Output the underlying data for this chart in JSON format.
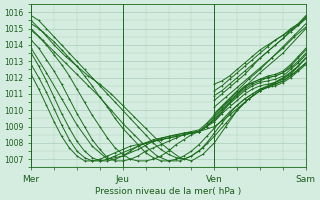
{
  "xlabel": "Pression niveau de la mer( hPa )",
  "xlim": [
    0,
    72
  ],
  "ylim": [
    1006.5,
    1016.5
  ],
  "yticks": [
    1007,
    1008,
    1009,
    1010,
    1011,
    1012,
    1013,
    1014,
    1015,
    1016
  ],
  "xtick_positions": [
    0,
    24,
    48,
    72
  ],
  "xtick_labels": [
    "Mer",
    "Jeu",
    "Ven",
    "Sam"
  ],
  "bg_color": "#d5ede0",
  "grid_color": "#aaccbb",
  "line_color": "#1a6b1a",
  "series": [
    {
      "x": [
        0,
        2,
        4,
        6,
        8,
        10,
        12,
        14,
        16,
        18,
        20,
        22,
        24,
        26,
        28,
        30,
        32,
        34,
        36,
        38,
        40,
        42,
        44,
        46,
        48,
        50,
        52,
        54,
        56,
        58,
        60,
        62,
        64,
        66,
        68,
        70,
        72
      ],
      "y": [
        1015.8,
        1015.5,
        1015.0,
        1014.5,
        1014.0,
        1013.5,
        1013.0,
        1012.5,
        1012.0,
        1011.5,
        1011.0,
        1010.5,
        1010.0,
        1009.5,
        1009.0,
        1008.5,
        1008.0,
        1007.6,
        1007.3,
        1007.1,
        1007.0,
        1007.2,
        1007.5,
        1008.0,
        1008.6,
        1009.2,
        1009.8,
        1010.3,
        1010.7,
        1011.0,
        1011.3,
        1011.4,
        1011.5,
        1011.7,
        1012.0,
        1012.4,
        1012.8
      ]
    },
    {
      "x": [
        0,
        2,
        4,
        6,
        8,
        10,
        12,
        14,
        16,
        18,
        20,
        22,
        24,
        26,
        28,
        30,
        32,
        34,
        36,
        38,
        40,
        42,
        44,
        46,
        48,
        50,
        52,
        54,
        56,
        58,
        60,
        62,
        64,
        66,
        68,
        70,
        72
      ],
      "y": [
        1015.3,
        1015.0,
        1014.6,
        1014.2,
        1013.7,
        1013.2,
        1012.7,
        1012.1,
        1011.5,
        1010.8,
        1010.2,
        1009.5,
        1008.9,
        1008.4,
        1007.9,
        1007.4,
        1007.1,
        1006.9,
        1006.9,
        1007.0,
        1007.2,
        1007.5,
        1007.9,
        1008.4,
        1008.9,
        1009.4,
        1009.9,
        1010.3,
        1010.7,
        1011.0,
        1011.3,
        1011.5,
        1011.6,
        1011.8,
        1012.1,
        1012.5,
        1012.9
      ]
    },
    {
      "x": [
        0,
        2,
        4,
        6,
        8,
        10,
        12,
        14,
        16,
        18,
        20,
        22,
        24,
        26,
        28,
        30,
        32,
        34,
        36,
        38,
        40,
        42,
        44,
        46,
        48,
        50,
        52,
        54,
        56,
        58,
        60,
        62,
        64,
        66,
        68,
        70,
        72
      ],
      "y": [
        1014.9,
        1014.5,
        1014.0,
        1013.4,
        1012.8,
        1012.1,
        1011.3,
        1010.5,
        1009.7,
        1009.0,
        1008.3,
        1007.7,
        1007.3,
        1007.0,
        1006.9,
        1006.9,
        1007.0,
        1007.2,
        1007.5,
        1007.9,
        1008.2,
        1008.5,
        1008.7,
        1009.0,
        1009.3,
        1009.8,
        1010.2,
        1010.6,
        1011.0,
        1011.3,
        1011.5,
        1011.6,
        1011.7,
        1011.9,
        1012.3,
        1012.7,
        1013.2
      ]
    },
    {
      "x": [
        0,
        2,
        4,
        6,
        8,
        10,
        12,
        14,
        16,
        18,
        20,
        22,
        24,
        26,
        28,
        30,
        32,
        34,
        36,
        38,
        40,
        42,
        44,
        46,
        48,
        50,
        52,
        54,
        56,
        58,
        60,
        62,
        64,
        66,
        68,
        70,
        72
      ],
      "y": [
        1014.3,
        1013.8,
        1013.1,
        1012.4,
        1011.6,
        1010.7,
        1009.8,
        1009.0,
        1008.2,
        1007.6,
        1007.1,
        1006.9,
        1006.9,
        1007.0,
        1007.2,
        1007.5,
        1007.7,
        1007.9,
        1008.1,
        1008.3,
        1008.5,
        1008.6,
        1008.7,
        1009.0,
        1009.4,
        1009.9,
        1010.4,
        1010.8,
        1011.2,
        1011.5,
        1011.7,
        1011.8,
        1011.9,
        1012.1,
        1012.5,
        1012.9,
        1013.4
      ]
    },
    {
      "x": [
        0,
        2,
        4,
        6,
        8,
        10,
        12,
        14,
        16,
        18,
        20,
        22,
        24,
        26,
        28,
        30,
        32,
        34,
        36,
        38,
        40,
        42,
        44,
        46,
        48,
        50,
        52,
        54,
        56,
        58,
        60,
        62,
        64,
        66,
        68,
        70,
        72
      ],
      "y": [
        1013.5,
        1012.7,
        1011.8,
        1010.8,
        1009.8,
        1008.9,
        1008.1,
        1007.5,
        1007.1,
        1006.9,
        1006.9,
        1007.0,
        1007.2,
        1007.5,
        1007.8,
        1008.0,
        1008.2,
        1008.3,
        1008.4,
        1008.5,
        1008.6,
        1008.7,
        1008.8,
        1009.2,
        1009.7,
        1010.2,
        1010.7,
        1011.1,
        1011.5,
        1011.7,
        1011.9,
        1012.0,
        1012.1,
        1012.3,
        1012.6,
        1013.0,
        1013.5
      ]
    },
    {
      "x": [
        0,
        2,
        4,
        6,
        8,
        10,
        12,
        14,
        16,
        18,
        20,
        22,
        24,
        26,
        28,
        30,
        32,
        34,
        36,
        38,
        40,
        42,
        44,
        46,
        48,
        50,
        52,
        54,
        56,
        58,
        60,
        62,
        64,
        66,
        68,
        70,
        72
      ],
      "y": [
        1012.8,
        1012.0,
        1011.1,
        1010.1,
        1009.1,
        1008.2,
        1007.5,
        1007.1,
        1006.9,
        1006.9,
        1007.0,
        1007.2,
        1007.4,
        1007.6,
        1007.8,
        1008.0,
        1008.1,
        1008.2,
        1008.3,
        1008.4,
        1008.5,
        1008.6,
        1008.7,
        1009.1,
        1009.6,
        1010.1,
        1010.6,
        1011.0,
        1011.4,
        1011.7,
        1011.9,
        1012.1,
        1012.2,
        1012.4,
        1012.8,
        1013.3,
        1013.8
      ]
    },
    {
      "x": [
        0,
        2,
        4,
        6,
        8,
        10,
        12,
        14,
        16,
        18,
        20,
        22,
        24,
        26,
        28,
        30,
        32,
        34,
        36,
        38,
        40,
        42,
        44,
        46,
        48,
        50,
        52,
        54,
        56,
        58,
        60,
        62,
        64,
        66,
        68,
        70,
        72
      ],
      "y": [
        1012.2,
        1011.3,
        1010.3,
        1009.3,
        1008.4,
        1007.7,
        1007.2,
        1006.9,
        1006.9,
        1007.0,
        1007.2,
        1007.4,
        1007.6,
        1007.8,
        1007.9,
        1008.0,
        1008.1,
        1008.2,
        1008.3,
        1008.4,
        1008.5,
        1008.6,
        1008.7,
        1009.0,
        1009.5,
        1010.0,
        1010.5,
        1010.9,
        1011.3,
        1011.6,
        1011.8,
        1012.0,
        1012.1,
        1012.3,
        1012.7,
        1013.2,
        1013.7
      ]
    },
    {
      "x": [
        0,
        3,
        6,
        9,
        12,
        15,
        18,
        21,
        24,
        27,
        30,
        33,
        36,
        39,
        42,
        45,
        48,
        51,
        54,
        57,
        60,
        63,
        66,
        69,
        72
      ],
      "y": [
        1015.5,
        1014.8,
        1014.0,
        1013.3,
        1012.7,
        1012.1,
        1011.6,
        1011.0,
        1010.3,
        1009.6,
        1008.9,
        1008.2,
        1007.6,
        1007.1,
        1006.9,
        1007.3,
        1008.0,
        1009.0,
        1010.0,
        1010.7,
        1011.2,
        1011.6,
        1012.0,
        1012.5,
        1013.2
      ]
    },
    {
      "x": [
        0,
        3,
        6,
        9,
        12,
        15,
        18,
        21,
        24,
        27,
        30,
        33,
        36,
        39,
        42,
        45,
        48,
        51,
        54,
        57,
        60,
        63,
        66,
        69,
        72
      ],
      "y": [
        1015.0,
        1014.3,
        1013.6,
        1012.9,
        1012.2,
        1011.5,
        1010.8,
        1010.0,
        1009.2,
        1008.5,
        1007.8,
        1007.2,
        1006.9,
        1006.9,
        1007.2,
        1007.7,
        1008.4,
        1009.2,
        1010.0,
        1010.7,
        1011.2,
        1011.5,
        1011.8,
        1012.3,
        1012.9
      ]
    },
    {
      "x": [
        0,
        4,
        8,
        12,
        16,
        20,
        24,
        28,
        32,
        36,
        40,
        44,
        48,
        52,
        56,
        60,
        64,
        68,
        72
      ],
      "y": [
        1013.8,
        1012.3,
        1010.7,
        1009.1,
        1007.8,
        1007.0,
        1007.2,
        1007.6,
        1008.1,
        1008.4,
        1008.6,
        1008.7,
        1009.0,
        1009.7,
        1010.5,
        1011.2,
        1011.7,
        1012.2,
        1013.2
      ]
    },
    {
      "x": [
        48,
        50,
        52,
        54,
        56,
        58,
        60,
        62,
        64,
        66,
        68,
        70,
        72
      ],
      "y": [
        1011.6,
        1011.8,
        1012.1,
        1012.5,
        1012.9,
        1013.3,
        1013.7,
        1014.0,
        1014.3,
        1014.6,
        1014.9,
        1015.2,
        1015.6
      ]
    },
    {
      "x": [
        48,
        50,
        52,
        54,
        56,
        58,
        60,
        62,
        64,
        66,
        68,
        70,
        72
      ],
      "y": [
        1011.2,
        1011.5,
        1011.9,
        1012.3,
        1012.7,
        1013.1,
        1013.5,
        1013.9,
        1014.3,
        1014.6,
        1015.0,
        1015.3,
        1015.7
      ]
    },
    {
      "x": [
        48,
        50,
        52,
        54,
        56,
        58,
        60,
        62,
        64,
        66,
        68,
        70,
        72
      ],
      "y": [
        1010.9,
        1011.2,
        1011.6,
        1012.0,
        1012.4,
        1012.8,
        1013.2,
        1013.6,
        1014.0,
        1014.4,
        1014.8,
        1015.2,
        1015.7
      ]
    },
    {
      "x": [
        48,
        50,
        52,
        54,
        56,
        58,
        60,
        62,
        64,
        66,
        68,
        70,
        72
      ],
      "y": [
        1010.6,
        1011.0,
        1011.4,
        1011.8,
        1012.2,
        1012.7,
        1013.2,
        1013.6,
        1014.0,
        1014.4,
        1014.9,
        1015.3,
        1015.8
      ]
    },
    {
      "x": [
        48,
        51,
        54,
        57,
        60,
        63,
        66,
        69,
        72
      ],
      "y": [
        1010.2,
        1010.8,
        1011.4,
        1012.0,
        1012.6,
        1013.2,
        1013.8,
        1014.5,
        1015.1
      ]
    },
    {
      "x": [
        48,
        51,
        54,
        57,
        60,
        63,
        66,
        69,
        72
      ],
      "y": [
        1009.8,
        1010.5,
        1011.2,
        1011.9,
        1012.5,
        1013.2,
        1013.9,
        1014.6,
        1015.3
      ]
    },
    {
      "x": [
        48,
        54,
        60,
        66,
        72
      ],
      "y": [
        1009.3,
        1011.0,
        1012.3,
        1013.5,
        1015.0
      ]
    }
  ]
}
